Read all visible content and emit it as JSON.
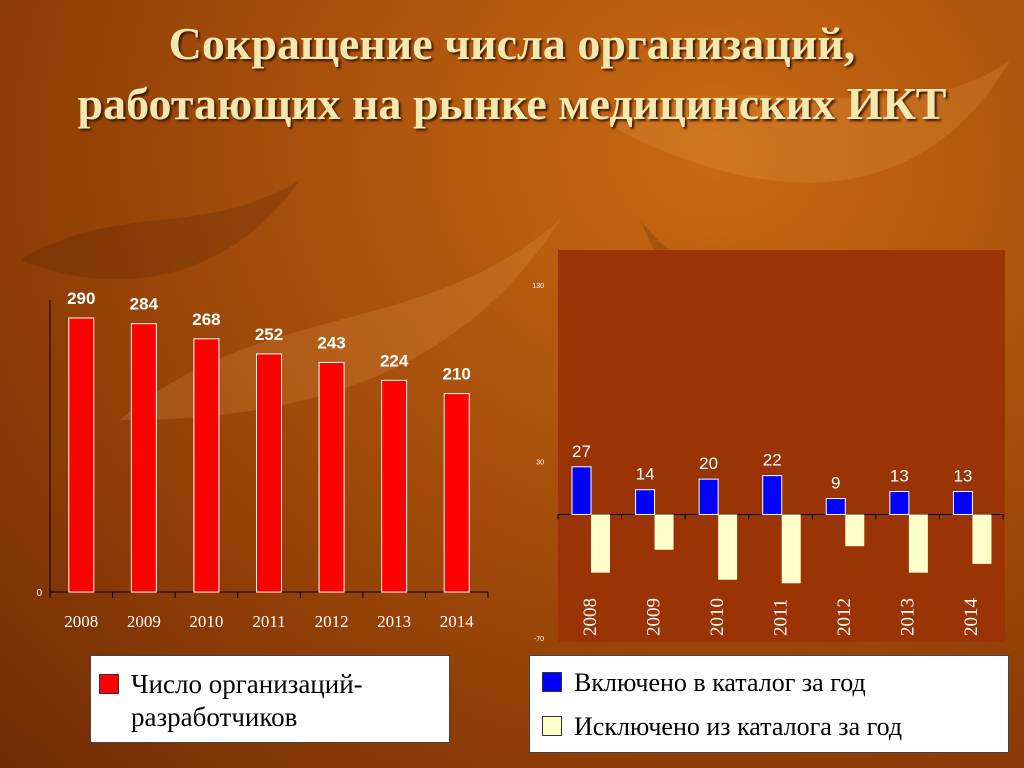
{
  "title": {
    "line1": "Сокращение числа организаций,",
    "line2": "работающих на рынке медицинских ИКТ"
  },
  "colors": {
    "red": "#ff0000",
    "blue": "#0000ff",
    "cream": "#ffffcc",
    "panel": "#9a3404"
  },
  "chart_data": [
    {
      "type": "bar",
      "categories": [
        "2008",
        "2009",
        "2010",
        "2011",
        "2012",
        "2013",
        "2014"
      ],
      "series": [
        {
          "name": "Число организаций-разработчиков",
          "values": [
            290,
            284,
            268,
            252,
            243,
            224,
            210
          ]
        }
      ],
      "ylim": [
        0,
        290
      ],
      "y_ticks": [
        "0"
      ],
      "legend": {
        "placement": "bottom",
        "label": "Число организаций-разработчиков"
      }
    },
    {
      "type": "bar",
      "categories": [
        "2008",
        "2009",
        "2010",
        "2011",
        "2012",
        "2013",
        "2014"
      ],
      "series": [
        {
          "name": "Включено в каталог за год",
          "values": [
            27,
            14,
            20,
            22,
            9,
            13,
            13
          ]
        },
        {
          "name": "Исключено из каталога за год",
          "values": [
            -33,
            -20,
            -37,
            -39,
            -18,
            -33,
            -28
          ]
        }
      ],
      "ylim": [
        -70,
        130
      ],
      "y_ticks": [
        "130",
        "30",
        "-70"
      ],
      "legend": {
        "placement": "bottom",
        "labels": [
          "Включено в каталог за год",
          "Исключено из каталога за год"
        ]
      }
    }
  ]
}
